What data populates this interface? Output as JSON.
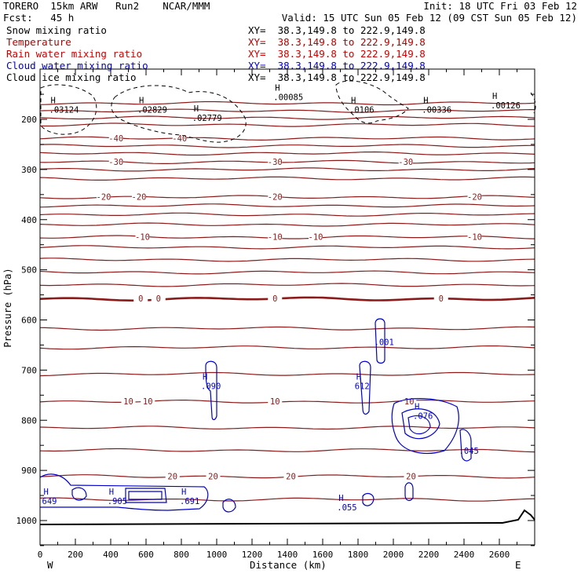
{
  "header": {
    "line1_left": "TORERO  15km ARW   Run2    NCAR/MMM",
    "line1_right": "Init: 18 UTC Fri 03 Feb 12",
    "line2_left": "Fcst:   45 h",
    "line2_right": "Valid: 15 UTC Sun 05 Feb 12 (09 CST Sun 05 Feb 12)"
  },
  "legend": [
    {
      "field": "Snow mixing ratio",
      "xy": "XY=  38.3,149.8 to 222.9,149.8",
      "color": "#000000",
      "xy_color": "#000000"
    },
    {
      "field": "Temperature",
      "xy": "XY=  38.3,149.8 to 222.9,149.8",
      "color": "#b00000",
      "xy_color": "#b00000"
    },
    {
      "field": "Rain water mixing ratio",
      "xy": "XY=  38.3,149.8 to 222.9,149.8",
      "color": "#cc0000",
      "xy_color": "#cc0000"
    },
    {
      "field": "Cloud water mixing ratio",
      "xy": "XY=  38.3,149.8 to 222.9,149.8",
      "color": "#0000cc",
      "xy_color": "#0000cc"
    },
    {
      "field": "Cloud ice mixing ratio",
      "xy": "XY=  38.3,149.8 to 222.9,149.8",
      "color": "#000000",
      "xy_color": "#000000"
    }
  ],
  "chart_data": {
    "type": "contour cross-section",
    "xlabel": "Distance (km)",
    "ylabel": "Pressure (hPa)",
    "xlim": [
      0,
      2800
    ],
    "ylim": [
      1050,
      150
    ],
    "xticks": [
      0,
      200,
      400,
      600,
      800,
      1000,
      1200,
      1400,
      1600,
      1800,
      2000,
      2200,
      2400,
      2600
    ],
    "yticks": [
      200,
      300,
      400,
      500,
      600,
      700,
      800,
      900,
      1000
    ],
    "x_end_labels": {
      "left": "W",
      "right": "E"
    },
    "isotherm_color": "#8b1a1a",
    "cloud_color": "#0000cc",
    "isotherms": [
      {
        "p": 168
      },
      {
        "p": 183
      },
      {
        "p": 197
      },
      {
        "p": 211
      },
      {
        "p": 238,
        "labels": [
          {
            "x": 430,
            "t": "-40"
          },
          {
            "x": 790,
            "t": "-40"
          }
        ]
      },
      {
        "p": 253
      },
      {
        "p": 268
      },
      {
        "p": 285,
        "labels": [
          {
            "x": 430,
            "t": "-30"
          },
          {
            "x": 1330,
            "t": "-30"
          },
          {
            "x": 2070,
            "t": "-30"
          }
        ]
      },
      {
        "p": 300
      },
      {
        "p": 318
      },
      {
        "p": 355,
        "labels": [
          {
            "x": 360,
            "t": "-20"
          },
          {
            "x": 560,
            "t": "-20"
          },
          {
            "x": 1330,
            "t": "-20"
          },
          {
            "x": 2460,
            "t": "-20"
          }
        ]
      },
      {
        "p": 372
      },
      {
        "p": 390
      },
      {
        "p": 410
      },
      {
        "p": 435,
        "labels": [
          {
            "x": 580,
            "t": "-10"
          },
          {
            "x": 1330,
            "t": "-10"
          },
          {
            "x": 1560,
            "t": "-10"
          },
          {
            "x": 2460,
            "t": "-10"
          }
        ]
      },
      {
        "p": 455
      },
      {
        "p": 480
      },
      {
        "p": 505
      },
      {
        "p": 530
      },
      {
        "p": 558,
        "bold": true,
        "labels": [
          {
            "x": 570,
            "t": "0"
          },
          {
            "x": 670,
            "t": "0"
          },
          {
            "x": 1330,
            "t": "0"
          },
          {
            "x": 2270,
            "t": "0"
          }
        ]
      },
      {
        "p": 617
      },
      {
        "p": 655
      },
      {
        "p": 708
      },
      {
        "p": 763,
        "labels": [
          {
            "x": 500,
            "t": "10"
          },
          {
            "x": 610,
            "t": "10"
          },
          {
            "x": 1330,
            "t": "10"
          },
          {
            "x": 2090,
            "t": "10"
          }
        ]
      },
      {
        "p": 815
      },
      {
        "p": 860
      },
      {
        "p": 912,
        "labels": [
          {
            "x": 750,
            "t": "20"
          },
          {
            "x": 980,
            "t": "20"
          },
          {
            "x": 1420,
            "t": "20"
          },
          {
            "x": 2100,
            "t": "20"
          }
        ]
      },
      {
        "p": 958
      }
    ],
    "maxima_labels": [
      {
        "x": 60,
        "p": 187,
        "h": "H",
        "v": ".03124",
        "color": "#000000"
      },
      {
        "x": 560,
        "p": 187,
        "h": "H",
        "v": ".02829",
        "color": "#000000"
      },
      {
        "x": 870,
        "p": 203,
        "h": "H",
        "v": ".02779",
        "color": "#000000"
      },
      {
        "x": 1760,
        "p": 187,
        "h": "H",
        "v": ".0106",
        "color": "#000000"
      },
      {
        "x": 2170,
        "p": 187,
        "h": "H",
        "v": ".00336",
        "color": "#000000"
      },
      {
        "x": 2560,
        "p": 178,
        "h": "H",
        "v": ".00126",
        "color": "#000000"
      },
      {
        "x": 1330,
        "p": 162,
        "h": "H",
        "v": ".00085",
        "color": "#000000"
      },
      {
        "x": 1900,
        "p": 650,
        "h": "",
        "v": ".001",
        "color": "#0000cc"
      },
      {
        "x": 920,
        "p": 738,
        "h": "H",
        "v": ".090",
        "color": "#0000cc"
      },
      {
        "x": 1790,
        "p": 738,
        "h": "H",
        "v": "612",
        "color": "#0000cc"
      },
      {
        "x": 2120,
        "p": 797,
        "h": "H",
        "v": ".076",
        "color": "#0000cc"
      },
      {
        "x": 2380,
        "p": 867,
        "h": "",
        "v": ".045",
        "color": "#0000cc"
      },
      {
        "x": 20,
        "p": 967,
        "h": "H",
        "v": "649",
        "color": "#0000cc"
      },
      {
        "x": 390,
        "p": 967,
        "h": "H",
        "v": ".905",
        "color": "#0000cc"
      },
      {
        "x": 800,
        "p": 967,
        "h": "H",
        "v": ".691",
        "color": "#0000cc"
      },
      {
        "x": 1690,
        "p": 980,
        "h": "H",
        "v": ".055",
        "color": "#0000cc"
      }
    ]
  }
}
